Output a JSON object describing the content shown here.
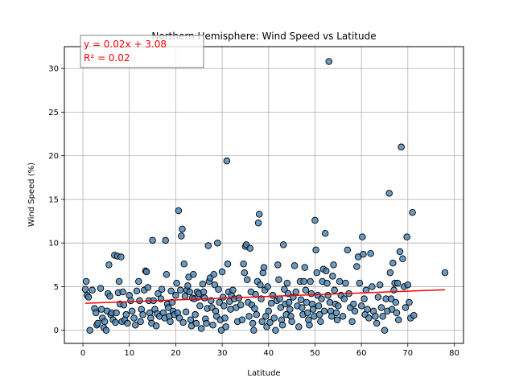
{
  "chart_data": {
    "type": "scatter",
    "title": "Northern Hemisphere: Wind Speed vs Latitude",
    "xlabel": "Latitude",
    "ylabel": "Wind Speed (%)",
    "xlim": [
      -4,
      82
    ],
    "ylim": [
      -1.5,
      32.5
    ],
    "xticks": [
      0,
      10,
      20,
      30,
      40,
      50,
      60,
      70,
      80
    ],
    "yticks": [
      0,
      5,
      10,
      15,
      20,
      25,
      30
    ],
    "grid": true,
    "point_color": "#4682b4",
    "point_edge_color": "#000000",
    "regression": {
      "slope": 0.02,
      "intercept": 3.08,
      "x_range": [
        0.5,
        78
      ],
      "color": "#ff0000",
      "equation": "y = 0.02x + 3.08",
      "r_squared": "R² = 0.02"
    },
    "points": [
      [
        0.5,
        4.7
      ],
      [
        0.7,
        5.6
      ],
      [
        0.9,
        4.0
      ],
      [
        1.2,
        3.8
      ],
      [
        1.5,
        0.0
      ],
      [
        2,
        4.6
      ],
      [
        2.5,
        2.5
      ],
      [
        2.8,
        2.0
      ],
      [
        3,
        0.6
      ],
      [
        3.2,
        0.8
      ],
      [
        3.8,
        4.8
      ],
      [
        4,
        2.4
      ],
      [
        4.2,
        1.4
      ],
      [
        4.5,
        0.3
      ],
      [
        4.7,
        1.0
      ],
      [
        5,
        0.0
      ],
      [
        5.2,
        2.2
      ],
      [
        5.4,
        4.2
      ],
      [
        5.6,
        7.5
      ],
      [
        5.8,
        3.9
      ],
      [
        6,
        1.8
      ],
      [
        6.2,
        2.0
      ],
      [
        6.5,
        1.2
      ],
      [
        6.8,
        8.6
      ],
      [
        7,
        0.9
      ],
      [
        7.2,
        2.0
      ],
      [
        7.4,
        8.5
      ],
      [
        7.6,
        4.3
      ],
      [
        7.8,
        5.6
      ],
      [
        8,
        3.0
      ],
      [
        8.2,
        8.4
      ],
      [
        8.4,
        1.0
      ],
      [
        8.6,
        4.4
      ],
      [
        8.8,
        2.9
      ],
      [
        9,
        1.2
      ],
      [
        9.3,
        1.8
      ],
      [
        9.6,
        0.8
      ],
      [
        10,
        4.0
      ],
      [
        10.3,
        3.4
      ],
      [
        10.6,
        2.2
      ],
      [
        11,
        1.4
      ],
      [
        11.3,
        0.6
      ],
      [
        11.6,
        4.5
      ],
      [
        12,
        5.6
      ],
      [
        12.2,
        3.4
      ],
      [
        12.4,
        1.0
      ],
      [
        12.6,
        2.4
      ],
      [
        12.9,
        1.8
      ],
      [
        13.2,
        4.6
      ],
      [
        13.5,
        6.8
      ],
      [
        13.7,
        6.7
      ],
      [
        14,
        4.9
      ],
      [
        14.2,
        3.4
      ],
      [
        14.4,
        2.0
      ],
      [
        14.6,
        1.4
      ],
      [
        14.8,
        0.8
      ],
      [
        15,
        10.3
      ],
      [
        15.2,
        3.4
      ],
      [
        15.5,
        2.4
      ],
      [
        15.8,
        0.5
      ],
      [
        16,
        1.9
      ],
      [
        16.2,
        4.2
      ],
      [
        16.5,
        1.6
      ],
      [
        16.8,
        3.6
      ],
      [
        17,
        4.7
      ],
      [
        17.3,
        2.0
      ],
      [
        17.6,
        1.4
      ],
      [
        17.8,
        10.3
      ],
      [
        18,
        6.4
      ],
      [
        18.2,
        3.0
      ],
      [
        18.4,
        2.6
      ],
      [
        18.6,
        1.6
      ],
      [
        18.8,
        1.0
      ],
      [
        19,
        4.5
      ],
      [
        19.2,
        3.2
      ],
      [
        19.4,
        2.2
      ],
      [
        19.7,
        1.8
      ],
      [
        20,
        4.0
      ],
      [
        20.2,
        5.4
      ],
      [
        20.4,
        2.0
      ],
      [
        20.6,
        13.7
      ],
      [
        20.8,
        1.4
      ],
      [
        21,
        4.6
      ],
      [
        21.2,
        10.8
      ],
      [
        21.4,
        11.6
      ],
      [
        21.6,
        0.9
      ],
      [
        21.8,
        7.6
      ],
      [
        22,
        3.9
      ],
      [
        22.2,
        2.1
      ],
      [
        22.4,
        4.6
      ],
      [
        22.6,
        5.1
      ],
      [
        22.8,
        6.1
      ],
      [
        23,
        4.4
      ],
      [
        23.2,
        1.2
      ],
      [
        23.4,
        0.5
      ],
      [
        23.6,
        3.7
      ],
      [
        23.8,
        6.4
      ],
      [
        24,
        3.6
      ],
      [
        24.2,
        1.8
      ],
      [
        24.4,
        0.8
      ],
      [
        24.6,
        4.4
      ],
      [
        24.8,
        3.8
      ],
      [
        25,
        4.2
      ],
      [
        25.2,
        2.8
      ],
      [
        25.5,
        0.2
      ],
      [
        25.8,
        5.3
      ],
      [
        26,
        4.4
      ],
      [
        26.2,
        3.7
      ],
      [
        26.4,
        1.3
      ],
      [
        26.6,
        0.8
      ],
      [
        26.8,
        2.5
      ],
      [
        27,
        9.7
      ],
      [
        27.2,
        5.6
      ],
      [
        27.4,
        6.0
      ],
      [
        27.6,
        3.4
      ],
      [
        27.8,
        2.6
      ],
      [
        28,
        0.6
      ],
      [
        28.2,
        6.4
      ],
      [
        28.4,
        5.2
      ],
      [
        28.6,
        2.2
      ],
      [
        28.8,
        1.6
      ],
      [
        29,
        10.0
      ],
      [
        29.2,
        4.7
      ],
      [
        29.4,
        3.2
      ],
      [
        29.6,
        1.2
      ],
      [
        29.8,
        0.0
      ],
      [
        30,
        6.7
      ],
      [
        30.2,
        3.8
      ],
      [
        30.4,
        2.8
      ],
      [
        30.6,
        1.4
      ],
      [
        30.8,
        0.4
      ],
      [
        31,
        19.4
      ],
      [
        31.2,
        7.6
      ],
      [
        31.4,
        4.4
      ],
      [
        31.6,
        3.3
      ],
      [
        31.8,
        2.4
      ],
      [
        32,
        4.0
      ],
      [
        32.3,
        4.6
      ],
      [
        32.6,
        3.6
      ],
      [
        33,
        2.6
      ],
      [
        33.3,
        1.0
      ],
      [
        33.6,
        3.7
      ],
      [
        34,
        2.9
      ],
      [
        34.3,
        1.2
      ],
      [
        34.6,
        7.6
      ],
      [
        34.8,
        6.6
      ],
      [
        35,
        9.6
      ],
      [
        35.2,
        9.8
      ],
      [
        35.4,
        5.8
      ],
      [
        35.6,
        3.2
      ],
      [
        35.8,
        1.6
      ],
      [
        36,
        9.4
      ],
      [
        36.2,
        4.4
      ],
      [
        36.4,
        2.9
      ],
      [
        36.6,
        0.8
      ],
      [
        36.8,
        0.0
      ],
      [
        37,
        2.5
      ],
      [
        37.2,
        4.1
      ],
      [
        37.4,
        1.8
      ],
      [
        37.6,
        5.6
      ],
      [
        37.8,
        12.3
      ],
      [
        38,
        13.3
      ],
      [
        38.2,
        5.2
      ],
      [
        38.4,
        3.6
      ],
      [
        38.6,
        1.0
      ],
      [
        38.8,
        6.6
      ],
      [
        39,
        7.2
      ],
      [
        39.2,
        4.6
      ],
      [
        39.4,
        1.6
      ],
      [
        39.6,
        0.4
      ],
      [
        39.8,
        5.0
      ],
      [
        40,
        2.2
      ],
      [
        40.3,
        0.9
      ],
      [
        40.6,
        3.1
      ],
      [
        40.9,
        4.0
      ],
      [
        41.2,
        1.4
      ],
      [
        41.5,
        0.0
      ],
      [
        41.8,
        3.4
      ],
      [
        42,
        7.5
      ],
      [
        42.2,
        5.8
      ],
      [
        42.4,
        3.6
      ],
      [
        42.6,
        2.6
      ],
      [
        42.8,
        1.2
      ],
      [
        43,
        0.6
      ],
      [
        43.2,
        9.8
      ],
      [
        43.4,
        4.7
      ],
      [
        43.6,
        3.0
      ],
      [
        43.8,
        1.8
      ],
      [
        44,
        5.4
      ],
      [
        44.2,
        4.2
      ],
      [
        44.4,
        3.2
      ],
      [
        44.6,
        2.4
      ],
      [
        44.8,
        1.6
      ],
      [
        45,
        1.0
      ],
      [
        45.3,
        3.8
      ],
      [
        45.6,
        7.4
      ],
      [
        45.9,
        4.4
      ],
      [
        46.2,
        2.8
      ],
      [
        46.5,
        0.4
      ],
      [
        46.8,
        5.6
      ],
      [
        47,
        3.5
      ],
      [
        47.2,
        2.6
      ],
      [
        47.4,
        1.8
      ],
      [
        47.6,
        5.6
      ],
      [
        47.8,
        7.2
      ],
      [
        48,
        4.6
      ],
      [
        48.2,
        3.2
      ],
      [
        48.4,
        2.0
      ],
      [
        48.6,
        1.2
      ],
      [
        48.8,
        0.6
      ],
      [
        49,
        5.6
      ],
      [
        49.2,
        4.2
      ],
      [
        49.4,
        3.0
      ],
      [
        49.6,
        2.4
      ],
      [
        49.8,
        1.6
      ],
      [
        50,
        12.6
      ],
      [
        50.2,
        9.2
      ],
      [
        50.4,
        6.6
      ],
      [
        50.6,
        4.0
      ],
      [
        50.8,
        2.8
      ],
      [
        51,
        1.8
      ],
      [
        51.2,
        1.0
      ],
      [
        51.4,
        3.6
      ],
      [
        51.6,
        5.6
      ],
      [
        51.8,
        7.0
      ],
      [
        52,
        2.2
      ],
      [
        52.2,
        11.1
      ],
      [
        52.4,
        6.8
      ],
      [
        52.6,
        5.4
      ],
      [
        52.8,
        4.0
      ],
      [
        53,
        30.8
      ],
      [
        53.2,
        3.2
      ],
      [
        53.4,
        2.2
      ],
      [
        53.6,
        1.6
      ],
      [
        53.8,
        6.2
      ],
      [
        54,
        7.5
      ],
      [
        54.2,
        4.6
      ],
      [
        54.4,
        3.0
      ],
      [
        54.6,
        2.0
      ],
      [
        54.8,
        1.2
      ],
      [
        55,
        2.8
      ],
      [
        55.3,
        5.6
      ],
      [
        55.6,
        4.0
      ],
      [
        56,
        1.6
      ],
      [
        56.3,
        3.6
      ],
      [
        56.6,
        5.4
      ],
      [
        57,
        9.2
      ],
      [
        57.3,
        4.2
      ],
      [
        57.6,
        2.6
      ],
      [
        58,
        1.0
      ],
      [
        58.3,
        3.0
      ],
      [
        58.6,
        2.2
      ],
      [
        59,
        7.3
      ],
      [
        59.3,
        8.4
      ],
      [
        59.6,
        5.4
      ],
      [
        60,
        2.8
      ],
      [
        60.2,
        10.7
      ],
      [
        60.4,
        8.7
      ],
      [
        60.6,
        3.6
      ],
      [
        60.8,
        1.8
      ],
      [
        61,
        4.6
      ],
      [
        61.3,
        2.4
      ],
      [
        61.6,
        1.4
      ],
      [
        62,
        8.8
      ],
      [
        62.3,
        5.0
      ],
      [
        62.6,
        2.2
      ],
      [
        63,
        1.6
      ],
      [
        63.3,
        0.8
      ],
      [
        63.6,
        3.8
      ],
      [
        64,
        5.2
      ],
      [
        64.3,
        2.6
      ],
      [
        64.6,
        1.6
      ],
      [
        65,
        0.0
      ],
      [
        65.3,
        3.6
      ],
      [
        65.6,
        2.2
      ],
      [
        66,
        15.7
      ],
      [
        66.2,
        6.6
      ],
      [
        66.4,
        3.6
      ],
      [
        66.6,
        2.4
      ],
      [
        66.8,
        7.7
      ],
      [
        67,
        4.6
      ],
      [
        67.2,
        5.4
      ],
      [
        67.4,
        3.2
      ],
      [
        67.6,
        2.0
      ],
      [
        67.8,
        5.4
      ],
      [
        68,
        1.2
      ],
      [
        68.3,
        9.0
      ],
      [
        68.6,
        21.0
      ],
      [
        68.9,
        8.2
      ],
      [
        69.2,
        5.0
      ],
      [
        69.5,
        2.6
      ],
      [
        69.8,
        10.7
      ],
      [
        70,
        5.2
      ],
      [
        70.3,
        3.2
      ],
      [
        70.6,
        1.4
      ],
      [
        71,
        13.5
      ],
      [
        71.3,
        1.7
      ],
      [
        78,
        6.6
      ]
    ]
  }
}
